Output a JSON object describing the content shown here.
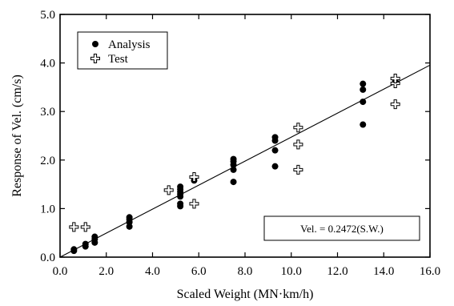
{
  "chart_data": {
    "type": "scatter",
    "xlabel": "Scaled Weight (MN·km/h)",
    "ylabel": "Response of Vel. (cm/s)",
    "xlim": [
      0,
      16
    ],
    "ylim": [
      0,
      5
    ],
    "xticks": [
      "0.0",
      "2.0",
      "4.0",
      "6.0",
      "8.0",
      "10.0",
      "12.0",
      "14.0",
      "16.0"
    ],
    "yticks": [
      "0.0",
      "1.0",
      "2.0",
      "3.0",
      "4.0",
      "5.0"
    ],
    "grid": false,
    "legend_position": "top-left",
    "series": [
      {
        "name": "Analysis",
        "marker": "filled-circle",
        "points": [
          [
            0.6,
            0.13
          ],
          [
            0.6,
            0.16
          ],
          [
            1.1,
            0.22
          ],
          [
            1.1,
            0.27
          ],
          [
            1.5,
            0.3
          ],
          [
            1.5,
            0.37
          ],
          [
            1.5,
            0.42
          ],
          [
            3.0,
            0.63
          ],
          [
            3.0,
            0.72
          ],
          [
            3.0,
            0.78
          ],
          [
            3.0,
            0.82
          ],
          [
            5.2,
            1.05
          ],
          [
            5.2,
            1.1
          ],
          [
            5.2,
            1.25
          ],
          [
            5.2,
            1.3
          ],
          [
            5.2,
            1.35
          ],
          [
            5.2,
            1.4
          ],
          [
            5.2,
            1.45
          ],
          [
            5.8,
            1.58
          ],
          [
            7.5,
            1.55
          ],
          [
            7.5,
            1.8
          ],
          [
            7.5,
            1.9
          ],
          [
            7.5,
            1.97
          ],
          [
            7.5,
            2.02
          ],
          [
            9.3,
            1.87
          ],
          [
            9.3,
            2.2
          ],
          [
            9.3,
            2.4
          ],
          [
            9.3,
            2.47
          ],
          [
            13.1,
            2.73
          ],
          [
            13.1,
            3.2
          ],
          [
            13.1,
            3.45
          ],
          [
            13.1,
            3.57
          ],
          [
            14.5,
            3.6
          ],
          [
            14.5,
            3.65
          ]
        ]
      },
      {
        "name": "Test",
        "marker": "open-cross",
        "points": [
          [
            0.6,
            0.62
          ],
          [
            1.1,
            0.62
          ],
          [
            4.7,
            1.38
          ],
          [
            5.8,
            1.1
          ],
          [
            5.8,
            1.65
          ],
          [
            10.3,
            1.8
          ],
          [
            10.3,
            2.32
          ],
          [
            10.3,
            2.67
          ],
          [
            14.5,
            3.15
          ],
          [
            14.5,
            3.58
          ],
          [
            14.5,
            3.68
          ]
        ]
      }
    ],
    "fit_line": {
      "slope": 0.2472,
      "intercept": 0
    },
    "annotation": "Vel. = 0.2472(S.W.)",
    "colors": {
      "line": "#000000",
      "marker": "#000000",
      "background": "#ffffff"
    }
  }
}
